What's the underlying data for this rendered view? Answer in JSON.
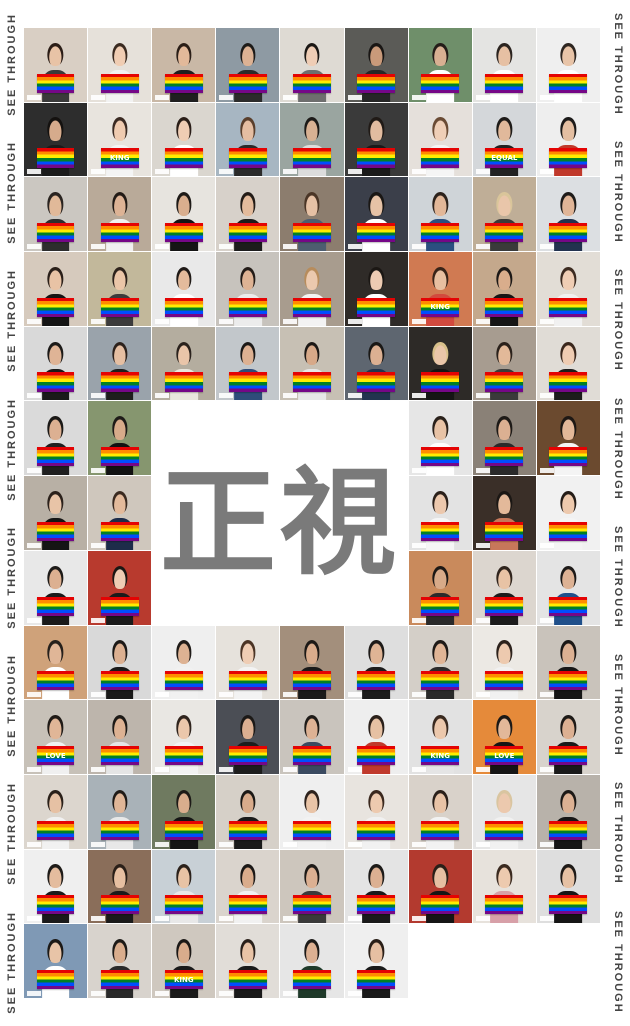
{
  "side_text": "SEE THROUGH",
  "center_title": "正視",
  "flag_texts": [
    "KING",
    "EQUAL",
    "LOVE"
  ],
  "colors": {
    "title": "#7a7a7a",
    "side_text": "#444444",
    "rainbow": [
      "#e40303",
      "#ff8c00",
      "#ffed00",
      "#008026",
      "#004dff",
      "#750787"
    ]
  },
  "layout_grid": {
    "columns": 9,
    "rows": 13,
    "center_block": "columns 3-6, rows 6-8"
  },
  "tiles": [
    {
      "bg": "#d9cfc4",
      "hair": "#2b1d16",
      "skin": "#e8c3a6",
      "shirt": "#3a3a3a",
      "flag": ""
    },
    {
      "bg": "#e6e1da",
      "hair": "#3a2a20",
      "skin": "#f0cdb3",
      "shirt": "#f2f2f2",
      "flag": ""
    },
    {
      "bg": "#c9b8a6",
      "hair": "#2a1e17",
      "skin": "#e2b99a",
      "shirt": "#1f1f1f",
      "flag": ""
    },
    {
      "bg": "#8e9aa3",
      "hair": "#1d1b19",
      "skin": "#dcb294",
      "shirt": "#2b2b2b",
      "flag": ""
    },
    {
      "bg": "#dedad3",
      "hair": "#1a1714",
      "skin": "#efcdb5",
      "shirt": "#6e6e6e",
      "flag": ""
    },
    {
      "bg": "#5b5b57",
      "hair": "#191614",
      "skin": "#c99a7a",
      "shirt": "#262626",
      "flag": ""
    },
    {
      "bg": "#6f8f6a",
      "hair": "#241d18",
      "skin": "#d8b092",
      "shirt": "#ffffff",
      "flag": ""
    },
    {
      "bg": "#e4e4e2",
      "hair": "#2b2420",
      "skin": "#e6c0a3",
      "shirt": "#ffffff",
      "flag": ""
    },
    {
      "bg": "#efefef",
      "hair": "#2d2520",
      "skin": "#e8c4a8",
      "shirt": "#ffffff",
      "flag": ""
    },
    {
      "bg": "#2d2d2d",
      "hair": "#14110f",
      "skin": "#d6ab8c",
      "shirt": "#1b1b1b",
      "flag": ""
    },
    {
      "bg": "#e8e4de",
      "hair": "#3a2a22",
      "skin": "#efcbb0",
      "shirt": "#f4f4f4",
      "flag": "KING"
    },
    {
      "bg": "#dad6cf",
      "hair": "#2a1e18",
      "skin": "#efcdb4",
      "shirt": "#ffffff",
      "flag": ""
    },
    {
      "bg": "#a7b6c2",
      "hair": "#5a3f2c",
      "skin": "#e5bea2",
      "shirt": "#2a2a2a",
      "flag": ""
    },
    {
      "bg": "#9aa5a0",
      "hair": "#1c1a18",
      "skin": "#d8b193",
      "shirt": "#dcdcdc",
      "flag": ""
    },
    {
      "bg": "#3a3a3a",
      "hair": "#201a16",
      "skin": "#e2bca0",
      "shirt": "#1a1a1a",
      "flag": ""
    },
    {
      "bg": "#e5e0db",
      "hair": "#6a4b34",
      "skin": "#efcfb7",
      "shirt": "#f5f5f5",
      "flag": ""
    },
    {
      "bg": "#d4d7da",
      "hair": "#1e1b18",
      "skin": "#e1b99b",
      "shirt": "#222222",
      "flag": "EQUAL"
    },
    {
      "bg": "#eeeeee",
      "hair": "#1c1a19",
      "skin": "#e4bfa2",
      "shirt": "#c0392b",
      "flag": ""
    },
    {
      "bg": "#cbc7c1",
      "hair": "#2a2420",
      "skin": "#e1b999",
      "shirt": "#2d2d2d",
      "flag": ""
    },
    {
      "bg": "#b9aa99",
      "hair": "#221b16",
      "skin": "#ddb395",
      "shirt": "#f1f1f1",
      "flag": ""
    },
    {
      "bg": "#e7e4df",
      "hair": "#1e1a17",
      "skin": "#d9ae8e",
      "shirt": "#151515",
      "flag": ""
    },
    {
      "bg": "#d7d1ca",
      "hair": "#231c17",
      "skin": "#e3bb9c",
      "shirt": "#1c1c1c",
      "flag": ""
    },
    {
      "bg": "#8c7d6e",
      "hair": "#4a3526",
      "skin": "#e6c1a5",
      "shirt": "#4d5d70",
      "flag": ""
    },
    {
      "bg": "#3b3f4a",
      "hair": "#1a1715",
      "skin": "#e6c2a6",
      "shirt": "#ffffff",
      "flag": ""
    },
    {
      "bg": "#cfd4d8",
      "hair": "#2c221c",
      "skin": "#e2b798",
      "shirt": "#2b4f80",
      "flag": ""
    },
    {
      "bg": "#bfae97",
      "hair": "#d9c59a",
      "skin": "#e9c6aa",
      "shirt": "#3a3a3a",
      "flag": ""
    },
    {
      "bg": "#dcdfe2",
      "hair": "#1e1b19",
      "skin": "#e0b597",
      "shirt": "#22324f",
      "flag": ""
    },
    {
      "bg": "#d6cabd",
      "hair": "#2a1f19",
      "skin": "#e8c3a5",
      "shirt": "#151515",
      "flag": ""
    },
    {
      "bg": "#c2b89b",
      "hair": "#2e231c",
      "skin": "#ebc6a8",
      "shirt": "#3b3b3b",
      "flag": ""
    },
    {
      "bg": "#e9e9e9",
      "hair": "#1f1a17",
      "skin": "#e4bb9c",
      "shirt": "#ffffff",
      "flag": ""
    },
    {
      "bg": "#c7c3bd",
      "hair": "#231c18",
      "skin": "#deb394",
      "shirt": "#ececec",
      "flag": ""
    },
    {
      "bg": "#a89c8e",
      "hair": "#b78c5c",
      "skin": "#ebc9ae",
      "shirt": "#f3f3f3",
      "flag": ""
    },
    {
      "bg": "#2f2b28",
      "hair": "#1b1714",
      "skin": "#edcbb2",
      "shirt": "#ffffff",
      "flag": ""
    },
    {
      "bg": "#d07a52",
      "hair": "#3a2418",
      "skin": "#e8bfa0",
      "shirt": "#d24a3e",
      "flag": "KING"
    },
    {
      "bg": "#c4a88c",
      "hair": "#1b1816",
      "skin": "#d9ad8c",
      "shirt": "#151515",
      "flag": ""
    },
    {
      "bg": "#e2ddd6",
      "hair": "#3c2a20",
      "skin": "#efcdb4",
      "shirt": "#f1f1f1",
      "flag": ""
    },
    {
      "bg": "#d9d9d9",
      "hair": "#1c1a18",
      "skin": "#dfb496",
      "shirt": "#1a1a1a",
      "flag": ""
    },
    {
      "bg": "#9aa3ab",
      "hair": "#2d221c",
      "skin": "#e6bfa2",
      "shirt": "#1e1e1e",
      "flag": ""
    },
    {
      "bg": "#b4ad9f",
      "hair": "#2a221d",
      "skin": "#e9c5a9",
      "shirt": "#e9e6dd",
      "flag": ""
    },
    {
      "bg": "#c2c7cb",
      "hair": "#1c1917",
      "skin": "#ddb192",
      "shirt": "#2f4c7a",
      "flag": ""
    },
    {
      "bg": "#c7c0b4",
      "hair": "#1b1816",
      "skin": "#d7a989",
      "shirt": "#e7e7e7",
      "flag": ""
    },
    {
      "bg": "#5e6670",
      "hair": "#1a1816",
      "skin": "#dcb092",
      "shirt": "#22344f",
      "flag": ""
    },
    {
      "bg": "#2d2a27",
      "hair": "#d8c08a",
      "skin": "#eac6a9",
      "shirt": "#151515",
      "flag": ""
    },
    {
      "bg": "#a79c90",
      "hair": "#2a211b",
      "skin": "#e2b999",
      "shirt": "#3a3a3a",
      "flag": ""
    },
    {
      "bg": "#e0dcd6",
      "hair": "#3a271c",
      "skin": "#efccb2",
      "shirt": "#1c1c1c",
      "flag": ""
    },
    {
      "bg": "#dadada",
      "hair": "#1a1816",
      "skin": "#dcb092",
      "shirt": "#1f1f1f",
      "flag": ""
    },
    {
      "bg": "#86966f",
      "hair": "#1e1b18",
      "skin": "#d7ab8a",
      "shirt": "#111111",
      "flag": ""
    },
    {
      "center": true
    },
    {
      "bg": "#e6e6e6",
      "hair": "#2a211b",
      "skin": "#e8c3a6",
      "shirt": "#ffffff",
      "flag": ""
    },
    {
      "bg": "#8a8177",
      "hair": "#1d1a17",
      "skin": "#dbb092",
      "shirt": "#2a2a2a",
      "flag": ""
    },
    {
      "bg": "#6b4a2f",
      "hair": "#1e1814",
      "skin": "#e3b899",
      "shirt": "#f4f4f4",
      "flag": ""
    },
    {
      "bg": "#b8b0a5",
      "hair": "#2b211b",
      "skin": "#e8c4a7",
      "shirt": "#151515",
      "flag": ""
    },
    {
      "bg": "#cfc7bd",
      "hair": "#3a2a20",
      "skin": "#e3ba9b",
      "shirt": "#1d2c4a",
      "flag": ""
    },
    {
      "bg": "#e3e3e3",
      "hair": "#2a201a",
      "skin": "#ecc8ad",
      "shirt": "#f6f6f6",
      "flag": ""
    },
    {
      "bg": "#3a2f28",
      "hair": "#1b1714",
      "skin": "#e3b99a",
      "shirt": "#c7775a",
      "flag": ""
    },
    {
      "bg": "#f1f1f1",
      "hair": "#241c17",
      "skin": "#edc9ad",
      "shirt": "#f4f4f4",
      "flag": ""
    },
    {
      "bg": "#e8e8e8",
      "hair": "#1d1a18",
      "skin": "#dcb091",
      "shirt": "#1a1a1a",
      "flag": ""
    },
    {
      "bg": "#b83a2e",
      "hair": "#1b1714",
      "skin": "#efcdb4",
      "shirt": "#1a1a1a",
      "flag": ""
    },
    {
      "bg": "#c98a5c",
      "hair": "#1d1815",
      "skin": "#d8aa88",
      "shirt": "#2a2a2a",
      "flag": ""
    },
    {
      "bg": "#dcd6cf",
      "hair": "#2f241d",
      "skin": "#e8c3a5",
      "shirt": "#1c1c1c",
      "flag": ""
    },
    {
      "bg": "#e4e4e4",
      "hair": "#1d1a18",
      "skin": "#ddb294",
      "shirt": "#1f4f8a",
      "flag": ""
    },
    {
      "bg": "#cfa27a",
      "hair": "#26201b",
      "skin": "#e0b697",
      "shirt": "#ffffff",
      "flag": ""
    },
    {
      "bg": "#d9d9d9",
      "hair": "#1c1917",
      "skin": "#dcb091",
      "shirt": "#1a1a1a",
      "flag": ""
    },
    {
      "bg": "#efefef",
      "hair": "#1f1b18",
      "skin": "#ddb293",
      "shirt": "#f1f1f1",
      "flag": ""
    },
    {
      "bg": "#e6e2dc",
      "hair": "#4b3425",
      "skin": "#efcdb4",
      "shirt": "#f3f3f3",
      "flag": ""
    },
    {
      "bg": "#a38f7c",
      "hair": "#1c1916",
      "skin": "#d9ac8c",
      "shirt": "#1a1a1a",
      "flag": ""
    },
    {
      "bg": "#dedede",
      "hair": "#1e1b19",
      "skin": "#dfb495",
      "shirt": "#1c1c1c",
      "flag": ""
    },
    {
      "bg": "#d4cfc8",
      "hair": "#1e1a17",
      "skin": "#e0b596",
      "shirt": "#2a2a2a",
      "flag": ""
    },
    {
      "bg": "#ece9e4",
      "hair": "#2c221c",
      "skin": "#edcaaf",
      "shirt": "#f1f1f1",
      "flag": ""
    },
    {
      "bg": "#c9c3bb",
      "hair": "#1b1816",
      "skin": "#dcb193",
      "shirt": "#161616",
      "flag": ""
    },
    {
      "bg": "#c7c1b8",
      "hair": "#201b17",
      "skin": "#e0b697",
      "shirt": "#f0f0f0",
      "flag": "LOVE"
    },
    {
      "bg": "#bdb5ac",
      "hair": "#1d1a17",
      "skin": "#ddb293",
      "shirt": "#e5e5e5",
      "flag": ""
    },
    {
      "bg": "#e9e7e3",
      "hair": "#2f241d",
      "skin": "#ebc7ab",
      "shirt": "#f2f2f2",
      "flag": ""
    },
    {
      "bg": "#4b4e55",
      "hair": "#1c1917",
      "skin": "#dbaf91",
      "shirt": "#1d1d1d",
      "flag": ""
    },
    {
      "bg": "#c9c4bd",
      "hair": "#1e1b18",
      "skin": "#ddb294",
      "shirt": "#3a4a60",
      "flag": ""
    },
    {
      "bg": "#eeeeee",
      "hair": "#2a201a",
      "skin": "#e6c1a3",
      "shirt": "#c0392b",
      "flag": ""
    },
    {
      "bg": "#e2e2e2",
      "hair": "#3a2a20",
      "skin": "#ecc8ac",
      "shirt": "#e5e5e5",
      "flag": "KING"
    },
    {
      "bg": "#e58a3a",
      "hair": "#1c1916",
      "skin": "#e2b899",
      "shirt": "#151515",
      "flag": "LOVE"
    },
    {
      "bg": "#d8d3cc",
      "hair": "#1e1a17",
      "skin": "#dcb092",
      "shirt": "#1a1a1a",
      "flag": ""
    },
    {
      "bg": "#dcd6ce",
      "hair": "#2a2019",
      "skin": "#e6c1a4",
      "shirt": "#f1f1f1",
      "flag": ""
    },
    {
      "bg": "#a9b2b8",
      "hair": "#201b17",
      "skin": "#e0b697",
      "shirt": "#e8e8e8",
      "flag": ""
    },
    {
      "bg": "#6f7a60",
      "hair": "#1d1a17",
      "skin": "#d9ad8d",
      "shirt": "#151515",
      "flag": ""
    },
    {
      "bg": "#d6d0c8",
      "hair": "#1c1916",
      "skin": "#d8ab8b",
      "shirt": "#1a1a1a",
      "flag": ""
    },
    {
      "bg": "#efefef",
      "hair": "#2d221c",
      "skin": "#e9c4a7",
      "shirt": "#f2f2f2",
      "flag": ""
    },
    {
      "bg": "#e8e4df",
      "hair": "#3a281e",
      "skin": "#edcaaf",
      "shirt": "#f1f1f1",
      "flag": ""
    },
    {
      "bg": "#d9d2ca",
      "hair": "#2a201a",
      "skin": "#e8c3a6",
      "shirt": "#f2f2f2",
      "flag": ""
    },
    {
      "bg": "#e6e6e6",
      "hair": "#d9c5a0",
      "skin": "#ecc9ae",
      "shirt": "#f1f1f1",
      "flag": ""
    },
    {
      "bg": "#b8b2aa",
      "hair": "#1c1916",
      "skin": "#dcb193",
      "shirt": "#161616",
      "flag": ""
    },
    {
      "bg": "#efefef",
      "hair": "#1e1b18",
      "skin": "#e4bc9e",
      "shirt": "#1a1a1a",
      "flag": ""
    },
    {
      "bg": "#8a6e5a",
      "hair": "#2a1f18",
      "skin": "#e6bfa1",
      "shirt": "#1a1a1a",
      "flag": ""
    },
    {
      "bg": "#c8d0d6",
      "hair": "#2b211b",
      "skin": "#e8c3a5",
      "shirt": "#e8e8e8",
      "flag": ""
    },
    {
      "bg": "#dad4cd",
      "hair": "#1b1816",
      "skin": "#d9ac8c",
      "shirt": "#f1f1f1",
      "flag": ""
    },
    {
      "bg": "#cdc6bd",
      "hair": "#1e1a17",
      "skin": "#dcb092",
      "shirt": "#3a3a3a",
      "flag": ""
    },
    {
      "bg": "#e4e4e4",
      "hair": "#1c1a18",
      "skin": "#dcb092",
      "shirt": "#1a1a1a",
      "flag": ""
    },
    {
      "bg": "#b33a2f",
      "hair": "#2a1f18",
      "skin": "#e6bfa2",
      "shirt": "#151515",
      "flag": ""
    },
    {
      "bg": "#e7e2dc",
      "hair": "#3a2a20",
      "skin": "#edcaaf",
      "shirt": "#d7a0a8",
      "flag": ""
    },
    {
      "bg": "#dedede",
      "hair": "#1e1a17",
      "skin": "#e6c1a4",
      "shirt": "#151515",
      "flag": ""
    },
    {
      "bg": "#7f99b5",
      "hair": "#1c1916",
      "skin": "#e8c4a7",
      "shirt": "#ffffff",
      "flag": ""
    },
    {
      "bg": "#d8d3cd",
      "hair": "#1d1a17",
      "skin": "#d9ad8d",
      "shirt": "#2a2a2a",
      "flag": ""
    },
    {
      "bg": "#cfc8bf",
      "hair": "#1b1816",
      "skin": "#d9ac8c",
      "shirt": "#1a1a1a",
      "flag": "KING"
    },
    {
      "bg": "#e1ddd8",
      "hair": "#2a201a",
      "skin": "#e8c3a6",
      "shirt": "#1a1a1a",
      "flag": ""
    },
    {
      "bg": "#e6e6e6",
      "hair": "#1c1a18",
      "skin": "#dcb092",
      "shirt": "#1f3a2a",
      "flag": ""
    },
    {
      "bg": "#efefef",
      "hair": "#2a1f18",
      "skin": "#e6bfa2",
      "shirt": "#1a1a1a",
      "flag": ""
    }
  ]
}
